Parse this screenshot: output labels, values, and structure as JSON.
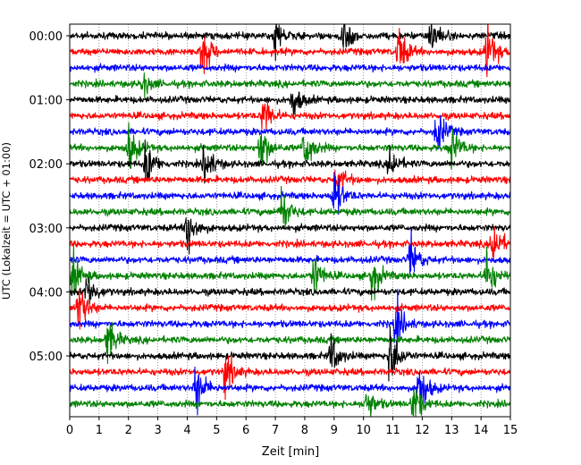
{
  "chart_data": {
    "type": "line",
    "title": "",
    "xlabel": "Zeit  [min]",
    "ylabel": "UTC (Lokalzeit = UTC + 01:00)",
    "xlim": [
      0,
      15
    ],
    "x_ticks": [
      "0",
      "1",
      "2",
      "3",
      "4",
      "5",
      "6",
      "7",
      "8",
      "9",
      "10",
      "11",
      "12",
      "13",
      "14",
      "15"
    ],
    "y_ticks": [
      "00:00",
      "01:00",
      "02:00",
      "03:00",
      "04:00",
      "05:00"
    ],
    "grid": "vertical dotted",
    "trace_interval_minutes": 15,
    "hours_shown": 6,
    "trace_colors": [
      "#000000",
      "#ff0000",
      "#0000ff",
      "#008000"
    ],
    "trace_count": 24,
    "events": [
      {
        "trace": 0,
        "minute": 7.0,
        "amplitude": 1.6
      },
      {
        "trace": 0,
        "minute": 9.3,
        "amplitude": 1.9
      },
      {
        "trace": 0,
        "minute": 12.3,
        "amplitude": 1.8
      },
      {
        "trace": 1,
        "minute": 4.5,
        "amplitude": 2.4
      },
      {
        "trace": 1,
        "minute": 11.2,
        "amplitude": 2.3
      },
      {
        "trace": 1,
        "minute": 14.2,
        "amplitude": 2.6
      },
      {
        "trace": 3,
        "minute": 2.5,
        "amplitude": 1.0
      },
      {
        "trace": 4,
        "minute": 7.6,
        "amplitude": 1.6
      },
      {
        "trace": 5,
        "minute": 6.6,
        "amplitude": 2.0
      },
      {
        "trace": 6,
        "minute": 12.5,
        "amplitude": 2.1
      },
      {
        "trace": 7,
        "minute": 2.0,
        "amplitude": 2.2
      },
      {
        "trace": 7,
        "minute": 6.5,
        "amplitude": 2.3
      },
      {
        "trace": 7,
        "minute": 8.0,
        "amplitude": 2.4
      },
      {
        "trace": 7,
        "minute": 13.0,
        "amplitude": 2.0
      },
      {
        "trace": 8,
        "minute": 2.6,
        "amplitude": 2.1
      },
      {
        "trace": 8,
        "minute": 4.6,
        "amplitude": 2.0
      },
      {
        "trace": 8,
        "minute": 10.9,
        "amplitude": 1.6
      },
      {
        "trace": 9,
        "minute": 9.1,
        "amplitude": 1.6
      },
      {
        "trace": 10,
        "minute": 9.0,
        "amplitude": 2.4
      },
      {
        "trace": 11,
        "minute": 7.2,
        "amplitude": 2.4
      },
      {
        "trace": 12,
        "minute": 4.0,
        "amplitude": 2.6
      },
      {
        "trace": 13,
        "minute": 14.4,
        "amplitude": 2.4
      },
      {
        "trace": 14,
        "minute": 11.6,
        "amplitude": 2.2
      },
      {
        "trace": 15,
        "minute": 8.3,
        "amplitude": 2.1
      },
      {
        "trace": 15,
        "minute": 10.3,
        "amplitude": 2.0
      },
      {
        "trace": 15,
        "minute": 14.2,
        "amplitude": 2.3
      },
      {
        "trace": 15,
        "minute": 0.1,
        "amplitude": 2.0
      },
      {
        "trace": 16,
        "minute": 0.6,
        "amplitude": 1.8
      },
      {
        "trace": 17,
        "minute": 0.3,
        "amplitude": 2.4
      },
      {
        "trace": 18,
        "minute": 11.1,
        "amplitude": 2.2
      },
      {
        "trace": 19,
        "minute": 1.3,
        "amplitude": 2.0
      },
      {
        "trace": 20,
        "minute": 8.9,
        "amplitude": 1.9
      },
      {
        "trace": 20,
        "minute": 10.9,
        "amplitude": 3.0
      },
      {
        "trace": 21,
        "minute": 5.3,
        "amplitude": 2.0
      },
      {
        "trace": 22,
        "minute": 4.3,
        "amplitude": 2.4
      },
      {
        "trace": 22,
        "minute": 11.9,
        "amplitude": 2.6
      },
      {
        "trace": 23,
        "minute": 10.1,
        "amplitude": 1.6
      },
      {
        "trace": 23,
        "minute": 11.7,
        "amplitude": 2.0
      }
    ]
  }
}
